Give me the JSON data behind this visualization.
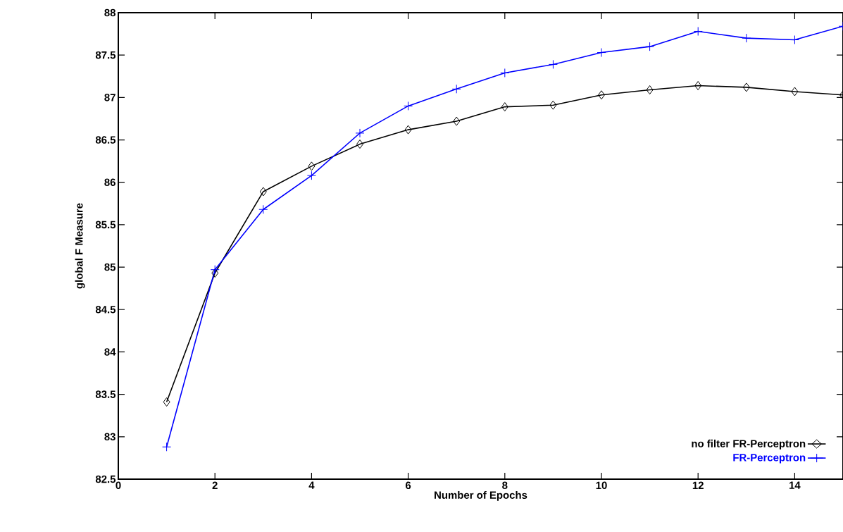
{
  "chart_data": {
    "type": "line",
    "xlabel": "Number of Epochs",
    "ylabel": "global F Measure",
    "x": [
      1,
      2,
      3,
      4,
      5,
      6,
      7,
      8,
      9,
      10,
      11,
      12,
      13,
      14,
      15
    ],
    "series": [
      {
        "name": "no filter FR-Perceptron",
        "color": "#000000",
        "marker": "diamond",
        "values": [
          83.41,
          84.93,
          85.89,
          86.19,
          86.45,
          86.62,
          86.72,
          86.89,
          86.91,
          87.03,
          87.09,
          87.14,
          87.12,
          87.07,
          87.03
        ]
      },
      {
        "name": "FR-Perceptron",
        "color": "#0000ff",
        "marker": "cross",
        "values": [
          82.88,
          84.97,
          85.68,
          86.08,
          86.58,
          86.9,
          87.1,
          87.29,
          87.39,
          87.53,
          87.6,
          87.78,
          87.7,
          87.68,
          87.84
        ]
      }
    ],
    "xlim": [
      0,
      15
    ],
    "ylim": [
      82.5,
      88
    ],
    "xticks": [
      0,
      2,
      4,
      6,
      8,
      10,
      12,
      14
    ],
    "yticks": [
      82.5,
      83,
      83.5,
      84,
      84.5,
      85,
      85.5,
      86,
      86.5,
      87,
      87.5,
      88
    ],
    "grid": false,
    "legend": "bottom right"
  }
}
